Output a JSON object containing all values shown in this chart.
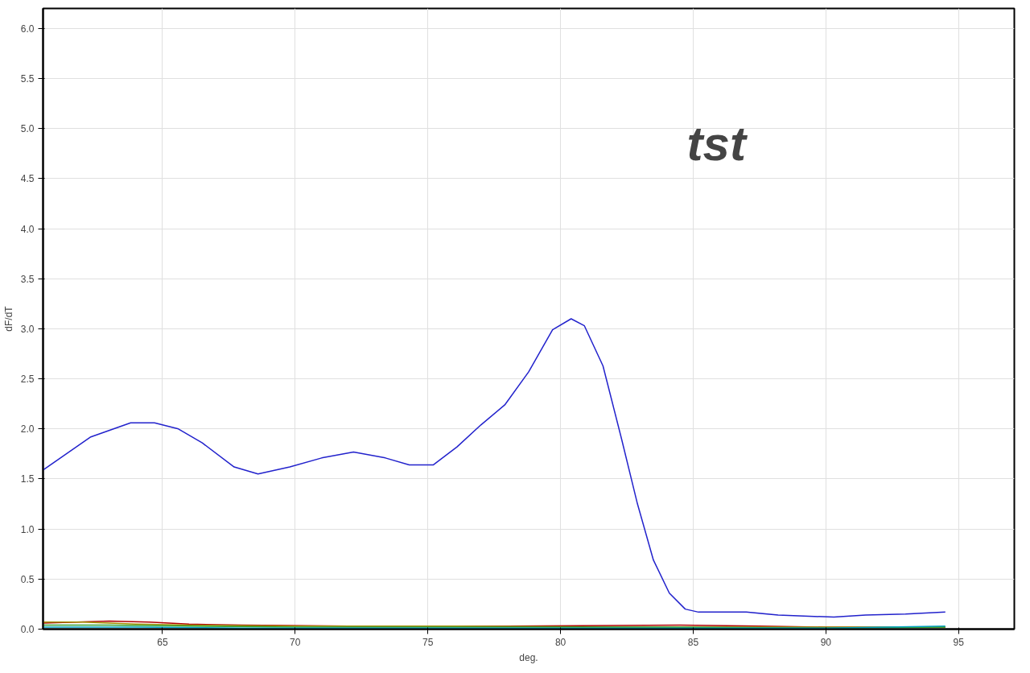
{
  "chart_data": {
    "type": "line",
    "xlabel": "deg.",
    "ylabel": "dF/dT",
    "annotations": [
      "tst"
    ],
    "xlim": [
      60.5,
      97.1
    ],
    "ylim": [
      0,
      6.2
    ],
    "xticks": [
      65,
      70,
      75,
      80,
      85,
      90,
      95
    ],
    "yticks": [
      {
        "value": 0,
        "label": "0.0"
      },
      {
        "value": 0.5,
        "label": "0.5"
      },
      {
        "value": 1,
        "label": "1.0"
      },
      {
        "value": 1.5,
        "label": "1.5"
      },
      {
        "value": 2,
        "label": "2.0"
      },
      {
        "value": 2.5,
        "label": "2.5"
      },
      {
        "value": 3,
        "label": "3.0"
      },
      {
        "value": 3.5,
        "label": "3.5"
      },
      {
        "value": 4,
        "label": "4.0"
      },
      {
        "value": 4.5,
        "label": "4.5"
      },
      {
        "value": 5,
        "label": "5.0"
      },
      {
        "value": 5.5,
        "label": "5.5"
      },
      {
        "value": 6,
        "label": "6.0"
      }
    ],
    "grid": true,
    "marker": "none",
    "line_style": "solid",
    "series": [
      {
        "color": "#2222cc",
        "x": [
          60.5,
          62.3,
          63.8,
          64.7,
          65.6,
          66.5,
          67.7,
          68.6,
          69.8,
          71.0,
          72.2,
          73.4,
          74.3,
          75.2,
          76.1,
          77.0,
          77.9,
          78.8,
          79.7,
          80.4,
          80.9,
          81.6,
          82.3,
          82.9,
          83.5,
          84.1,
          84.7,
          85.2,
          87.0,
          88.2,
          90.3,
          91.5,
          93.0,
          94.5
        ],
        "values": [
          1.59,
          1.92,
          2.06,
          2.06,
          2.0,
          1.86,
          1.62,
          1.55,
          1.62,
          1.71,
          1.77,
          1.71,
          1.64,
          1.64,
          1.82,
          2.04,
          2.24,
          2.57,
          2.99,
          3.1,
          3.03,
          2.63,
          1.9,
          1.25,
          0.69,
          0.36,
          0.2,
          0.17,
          0.17,
          0.14,
          0.12,
          0.14,
          0.15,
          0.17
        ]
      },
      {
        "color": "#b00000",
        "x": [
          60.5,
          63.0,
          64.5,
          66.0,
          68.0,
          72.0,
          78.0,
          84.5,
          87.5,
          90.0,
          94.5
        ],
        "values": [
          0.06,
          0.08,
          0.07,
          0.05,
          0.04,
          0.03,
          0.03,
          0.04,
          0.03,
          0.02,
          0.02
        ]
      },
      {
        "color": "#a09000",
        "x": [
          60.5,
          62.0,
          64.0,
          66.0,
          70.0,
          76.0,
          82.0,
          88.0,
          94.5
        ],
        "values": [
          0.07,
          0.07,
          0.05,
          0.04,
          0.03,
          0.03,
          0.02,
          0.02,
          0.02
        ]
      },
      {
        "color": "#30a030",
        "x": [
          60.5,
          63.0,
          66.0,
          70.0,
          76.0,
          84.0,
          90.0,
          94.5
        ],
        "values": [
          0.04,
          0.04,
          0.03,
          0.02,
          0.02,
          0.02,
          0.01,
          0.02
        ]
      },
      {
        "color": "#00a0c0",
        "x": [
          60.5,
          64.0,
          68.0,
          74.0,
          82.0,
          90.0,
          94.5
        ],
        "values": [
          0.02,
          0.02,
          0.01,
          0.01,
          0.01,
          0.01,
          0.03
        ]
      }
    ]
  }
}
